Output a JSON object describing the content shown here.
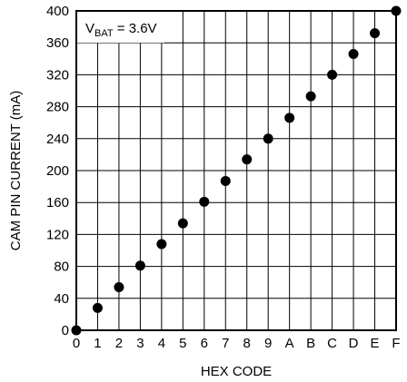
{
  "chart_data": {
    "type": "scatter",
    "xlabel": "HEX CODE",
    "ylabel": "CAM PIN CURRENT (mA)",
    "annotation": {
      "main": "V",
      "sub": "BAT",
      "rest": " = 3.6V"
    },
    "x": [
      "0",
      "1",
      "2",
      "3",
      "4",
      "5",
      "6",
      "7",
      "8",
      "9",
      "A",
      "B",
      "C",
      "D",
      "E",
      "F"
    ],
    "y": [
      0,
      28,
      54,
      81,
      108,
      134,
      161,
      187,
      214,
      240,
      266,
      293,
      320,
      346,
      372,
      400
    ],
    "ylim": [
      0,
      400
    ],
    "yticks": [
      0,
      40,
      80,
      120,
      160,
      200,
      240,
      280,
      320,
      360,
      400
    ],
    "grid": true,
    "color": "#000000"
  }
}
